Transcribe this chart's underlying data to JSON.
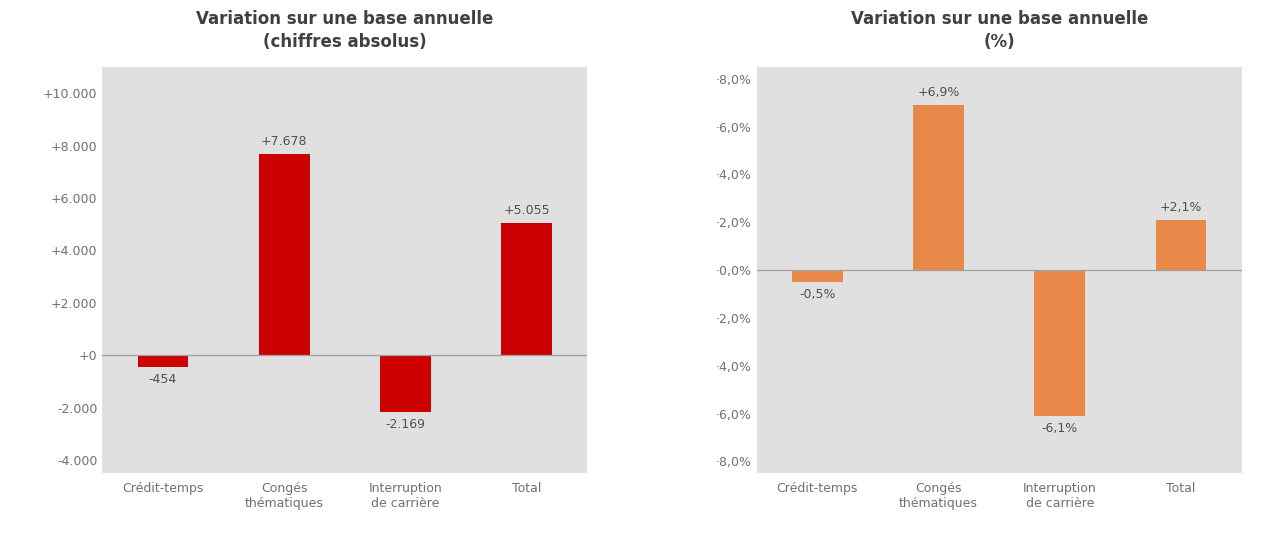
{
  "chart1": {
    "title": "Variation sur une base annuelle\n(chiffres absolus)",
    "categories": [
      "Crédit-temps",
      "Congés\nthématiques",
      "Interruption\nde carrière",
      "Total"
    ],
    "values": [
      -454,
      7678,
      -2169,
      5055
    ],
    "bar_color": "#cc0000",
    "labels": [
      "-454",
      "+7.678",
      "-2.169",
      "+5.055"
    ],
    "ylim": [
      -4500,
      11000
    ],
    "yticks": [
      -4000,
      -2000,
      0,
      2000,
      4000,
      6000,
      8000,
      10000
    ],
    "ytick_labels": [
      "-4.000",
      "-2.000",
      "+0",
      "+2.000",
      "+4.000",
      "+6.000",
      "+8.000",
      "+10.000"
    ]
  },
  "chart2": {
    "title": "Variation sur une base annuelle\n(%)",
    "categories": [
      "Crédit-temps",
      "Congés\nthématiques",
      "Interruption\nde carrière",
      "Total"
    ],
    "values": [
      -0.5,
      6.9,
      -6.1,
      2.1
    ],
    "bar_color": "#e8894a",
    "labels": [
      "-0,5%",
      "+6,9%",
      "-6,1%",
      "+2,1%"
    ],
    "ylim": [
      -8.5,
      8.5
    ],
    "yticks": [
      -8.0,
      -6.0,
      -4.0,
      -2.0,
      0.0,
      2.0,
      4.0,
      6.0,
      8.0
    ],
    "ytick_labels": [
      "·8,0%",
      "·6,0%",
      "·4,0%",
      "·2,0%",
      "·0,0%",
      "·2,0%",
      "·4,0%",
      "·6,0%",
      "·8,0%"
    ]
  },
  "stripe_color": "#e0e0e0",
  "white_color": "#ffffff",
  "fig_bg": "#ffffff",
  "title_color": "#404040",
  "label_color": "#505050",
  "tick_color": "#707070",
  "zero_line_color": "#a0a0a0"
}
